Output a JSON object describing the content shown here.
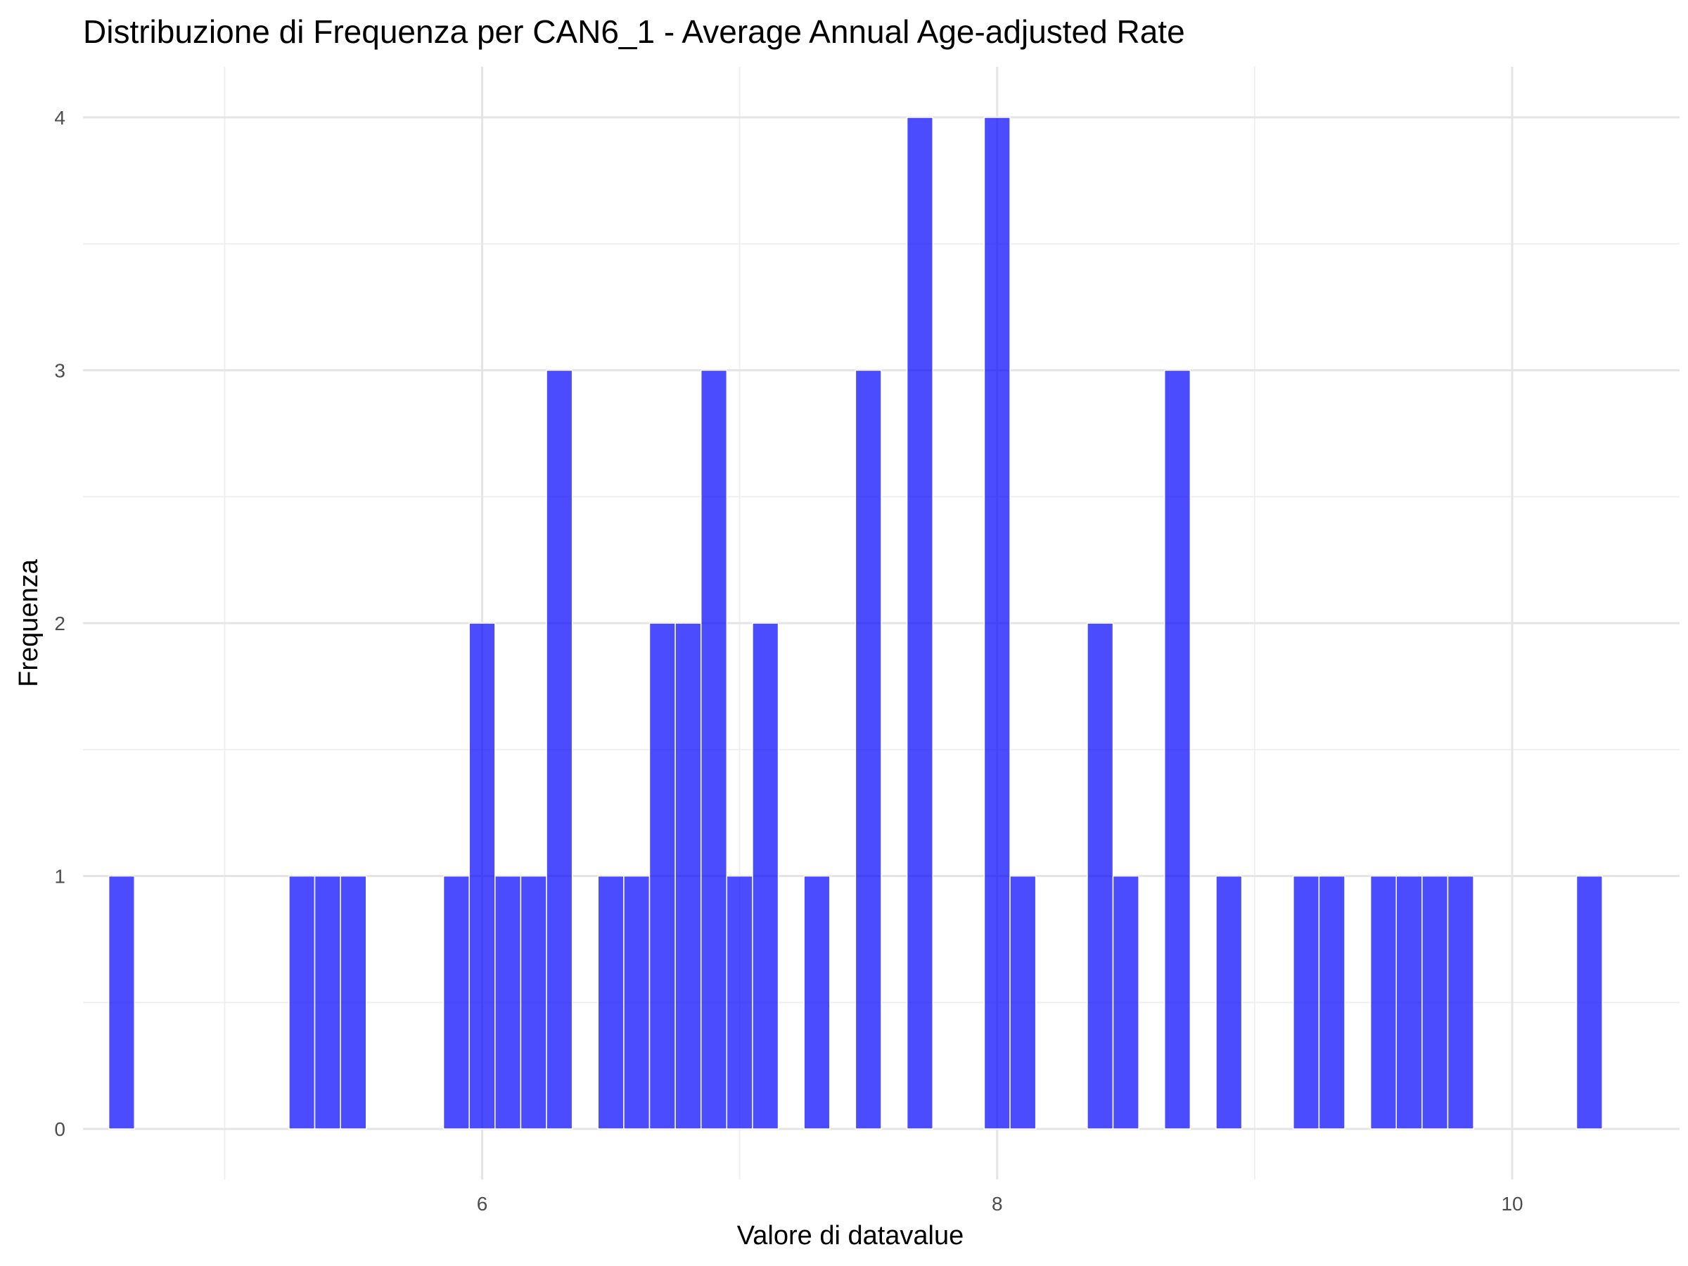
{
  "chart_data": {
    "type": "bar",
    "title": "Distribuzione di Frequenza per CAN6_1 - Average Annual Age-adjusted Rate",
    "xlabel": "Valore di datavalue",
    "ylabel": "Frequenza",
    "xlim": [
      4.45,
      10.65
    ],
    "ylim": [
      -0.2,
      4.2
    ],
    "x_ticks": [
      6,
      8,
      10
    ],
    "x_tick_labels": [
      "6",
      "8",
      "10"
    ],
    "y_ticks": [
      0,
      1,
      2,
      3,
      4
    ],
    "y_tick_labels": [
      "0",
      "1",
      "2",
      "3",
      "4"
    ],
    "x_minor_ticks": [
      5,
      7,
      9
    ],
    "y_minor_ticks": [
      0.5,
      1.5,
      2.5,
      3.5
    ],
    "grid": true,
    "bar_color": "#0000FF",
    "bar_opacity": 0.7,
    "bin_width": 0.1,
    "bars": [
      {
        "x": 4.6,
        "count": 1
      },
      {
        "x": 5.3,
        "count": 1
      },
      {
        "x": 5.4,
        "count": 1
      },
      {
        "x": 5.5,
        "count": 1
      },
      {
        "x": 5.9,
        "count": 1
      },
      {
        "x": 6.0,
        "count": 2
      },
      {
        "x": 6.1,
        "count": 1
      },
      {
        "x": 6.2,
        "count": 1
      },
      {
        "x": 6.3,
        "count": 3
      },
      {
        "x": 6.5,
        "count": 1
      },
      {
        "x": 6.6,
        "count": 1
      },
      {
        "x": 6.7,
        "count": 2
      },
      {
        "x": 6.8,
        "count": 2
      },
      {
        "x": 6.9,
        "count": 3
      },
      {
        "x": 7.0,
        "count": 1
      },
      {
        "x": 7.1,
        "count": 2
      },
      {
        "x": 7.3,
        "count": 1
      },
      {
        "x": 7.5,
        "count": 3
      },
      {
        "x": 7.7,
        "count": 4
      },
      {
        "x": 8.0,
        "count": 4
      },
      {
        "x": 8.1,
        "count": 1
      },
      {
        "x": 8.4,
        "count": 2
      },
      {
        "x": 8.5,
        "count": 1
      },
      {
        "x": 8.7,
        "count": 3
      },
      {
        "x": 8.9,
        "count": 1
      },
      {
        "x": 9.2,
        "count": 1
      },
      {
        "x": 9.3,
        "count": 1
      },
      {
        "x": 9.5,
        "count": 1
      },
      {
        "x": 9.6,
        "count": 1
      },
      {
        "x": 9.7,
        "count": 1
      },
      {
        "x": 9.8,
        "count": 1
      },
      {
        "x": 10.3,
        "count": 1
      }
    ]
  }
}
